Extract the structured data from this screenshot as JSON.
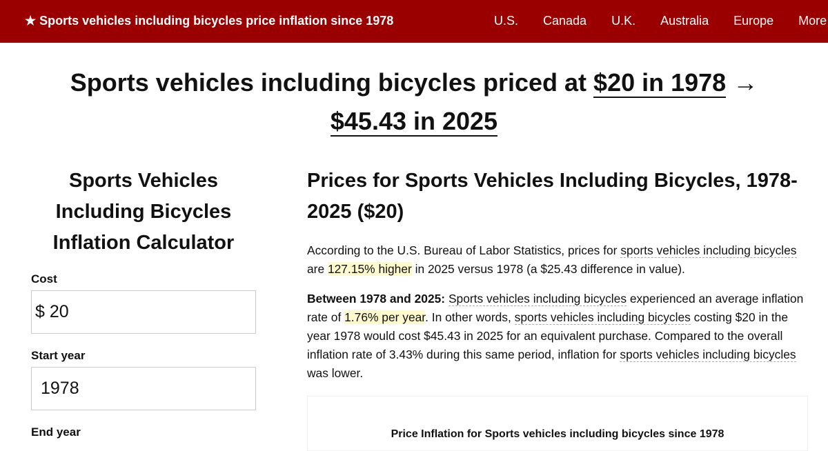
{
  "nav": {
    "brand": "★ Sports vehicles including bicycles price inflation since 1978",
    "links": [
      "U.S.",
      "Canada",
      "U.K.",
      "Australia",
      "Europe",
      "More"
    ]
  },
  "headline": {
    "prefix": "Sports vehicles including bicycles priced at",
    "start": "$20 in 1978",
    "arrow": "→",
    "end": "$45.43 in 2025"
  },
  "calculator": {
    "title": "Sports Vehicles Including Bicycles Inflation Calculator",
    "cost_label": "Cost",
    "cost_value": "$ 20",
    "start_label": "Start year",
    "start_value": "1978",
    "end_label": "End year"
  },
  "article": {
    "title": "Prices for Sports Vehicles Including Bicycles, 1978-2025 ($20)",
    "p1": {
      "a": "According to the U.S. Bureau of Labor Statistics, prices for ",
      "link": "sports vehicles including bicycles",
      "b": " are ",
      "hl": "127.15% higher",
      "c": " in 2025 versus 1978 (a $25.43 difference in value)."
    },
    "p2": {
      "bold": "Between 1978 and 2025:",
      "link1": "Sports vehicles including bicycles",
      "a": " experienced an average inflation rate of ",
      "hl": "1.76% per year",
      "b": ". In other words, ",
      "link2": "sports vehicles including bicycles",
      "c": " costing $20 in the year 1978 would cost $45.43 in 2025 for an equivalent purchase. Compared to the overall inflation rate of 3.43% during this same period, inflation for ",
      "link3": "sports vehicles including bicycles",
      "d": " was lower."
    },
    "chart_title": "Price Inflation for Sports vehicles including bicycles since 1978"
  }
}
